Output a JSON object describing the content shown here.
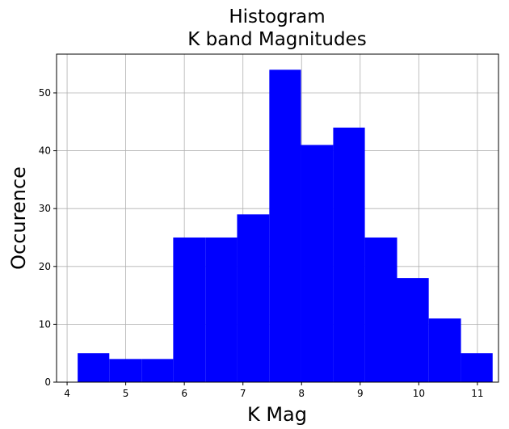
{
  "chart_data": {
    "type": "histogram",
    "title": [
      "Histogram",
      "K band Magnitudes"
    ],
    "x_label": "K Mag",
    "y_label": "Occurence",
    "bins": [
      4.18,
      4.72,
      5.27,
      5.81,
      6.36,
      6.9,
      7.45,
      7.99,
      8.54,
      9.08,
      9.63,
      10.17,
      10.72,
      11.26
    ],
    "counts": [
      5,
      4,
      4,
      25,
      25,
      29,
      54,
      41,
      44,
      25,
      18,
      11,
      5
    ],
    "color": "#0000ff",
    "xlim": [
      3.82,
      11.36
    ],
    "ylim": [
      0,
      56.7
    ],
    "xticks": [
      4,
      5,
      6,
      7,
      8,
      9,
      10,
      11
    ],
    "yticks": [
      0,
      10,
      20,
      30,
      40,
      50
    ],
    "grid": true
  }
}
